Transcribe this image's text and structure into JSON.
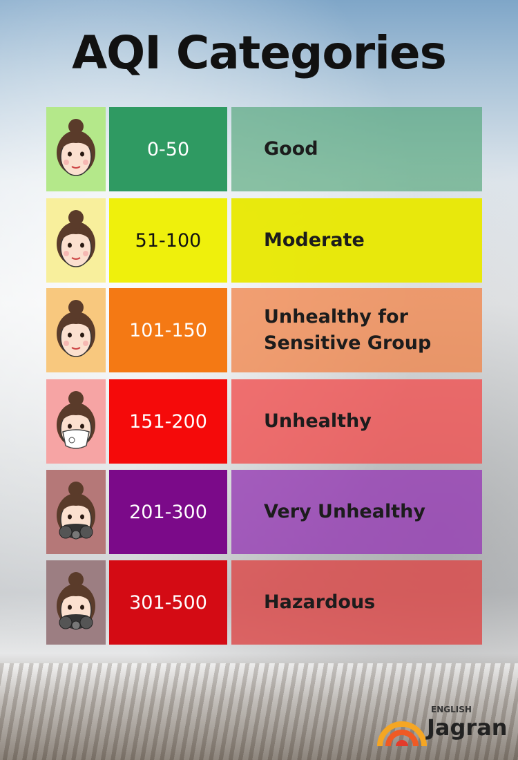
{
  "title": "AQI Categories",
  "rows": [
    {
      "range": "0-50",
      "category": "Good"
    },
    {
      "range": "51-100",
      "category": "Moderate"
    },
    {
      "range": "101-150",
      "category": "Unhealthy for Sensitive Group"
    },
    {
      "range": "151-200",
      "category": "Unhealthy"
    },
    {
      "range": "201-300",
      "category": "Very Unhealthy"
    },
    {
      "range": "301-500",
      "category": "Hazardous"
    }
  ],
  "brand": {
    "top": "ENGLISH",
    "name": "Jagran"
  }
}
